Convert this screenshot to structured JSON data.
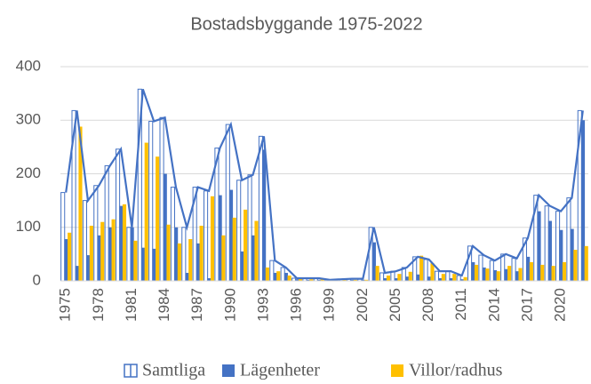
{
  "chart_data": {
    "type": "bar-line",
    "title": "Bostadsbyggande 1975-2022",
    "x": [
      1975,
      1976,
      1977,
      1978,
      1979,
      1980,
      1981,
      1982,
      1983,
      1984,
      1985,
      1986,
      1987,
      1988,
      1989,
      1990,
      1991,
      1992,
      1993,
      1994,
      1995,
      1996,
      1997,
      1998,
      1999,
      2000,
      2001,
      2002,
      2003,
      2004,
      2005,
      2006,
      2007,
      2008,
      2009,
      2010,
      2011,
      2012,
      2013,
      2014,
      2015,
      2016,
      2017,
      2018,
      2019,
      2020,
      2021,
      2022
    ],
    "series": [
      {
        "name": "Samtliga",
        "color": "#4472c4",
        "values": [
          165,
          318,
          150,
          178,
          215,
          246,
          100,
          358,
          298,
          305,
          175,
          100,
          175,
          168,
          248,
          292,
          188,
          198,
          270,
          38,
          25,
          5,
          5,
          5,
          2,
          3,
          4,
          4,
          100,
          15,
          18,
          25,
          45,
          40,
          18,
          18,
          10,
          65,
          48,
          38,
          50,
          42,
          80,
          160,
          140,
          130,
          155,
          318
        ]
      },
      {
        "name": "Lägenheter",
        "color": "#4472c4",
        "values": [
          78,
          28,
          48,
          85,
          100,
          140,
          100,
          62,
          60,
          200,
          100,
          15,
          70,
          5,
          160,
          170,
          55,
          85,
          245,
          15,
          15,
          3,
          2,
          2,
          1,
          1,
          2,
          2,
          72,
          5,
          5,
          8,
          12,
          8,
          5,
          5,
          3,
          35,
          25,
          20,
          22,
          18,
          45,
          130,
          112,
          95,
          97,
          300
        ]
      },
      {
        "name": "Villor/radhus",
        "color": "#ffc000",
        "values": [
          90,
          288,
          103,
          110,
          115,
          143,
          75,
          258,
          232,
          105,
          70,
          78,
          103,
          158,
          85,
          118,
          133,
          112,
          25,
          18,
          10,
          5,
          3,
          3,
          1,
          2,
          2,
          2,
          28,
          10,
          13,
          17,
          47,
          33,
          13,
          13,
          7,
          30,
          23,
          18,
          28,
          24,
          35,
          30,
          28,
          35,
          58,
          65
        ]
      }
    ],
    "xticks": [
      1975,
      1978,
      1981,
      1984,
      1987,
      1990,
      1993,
      1996,
      1999,
      2002,
      2005,
      2008,
      2011,
      2014,
      2017,
      2020
    ],
    "ylim": [
      0,
      400
    ],
    "yticks": [
      0,
      100,
      200,
      300,
      400
    ],
    "grid": true
  }
}
